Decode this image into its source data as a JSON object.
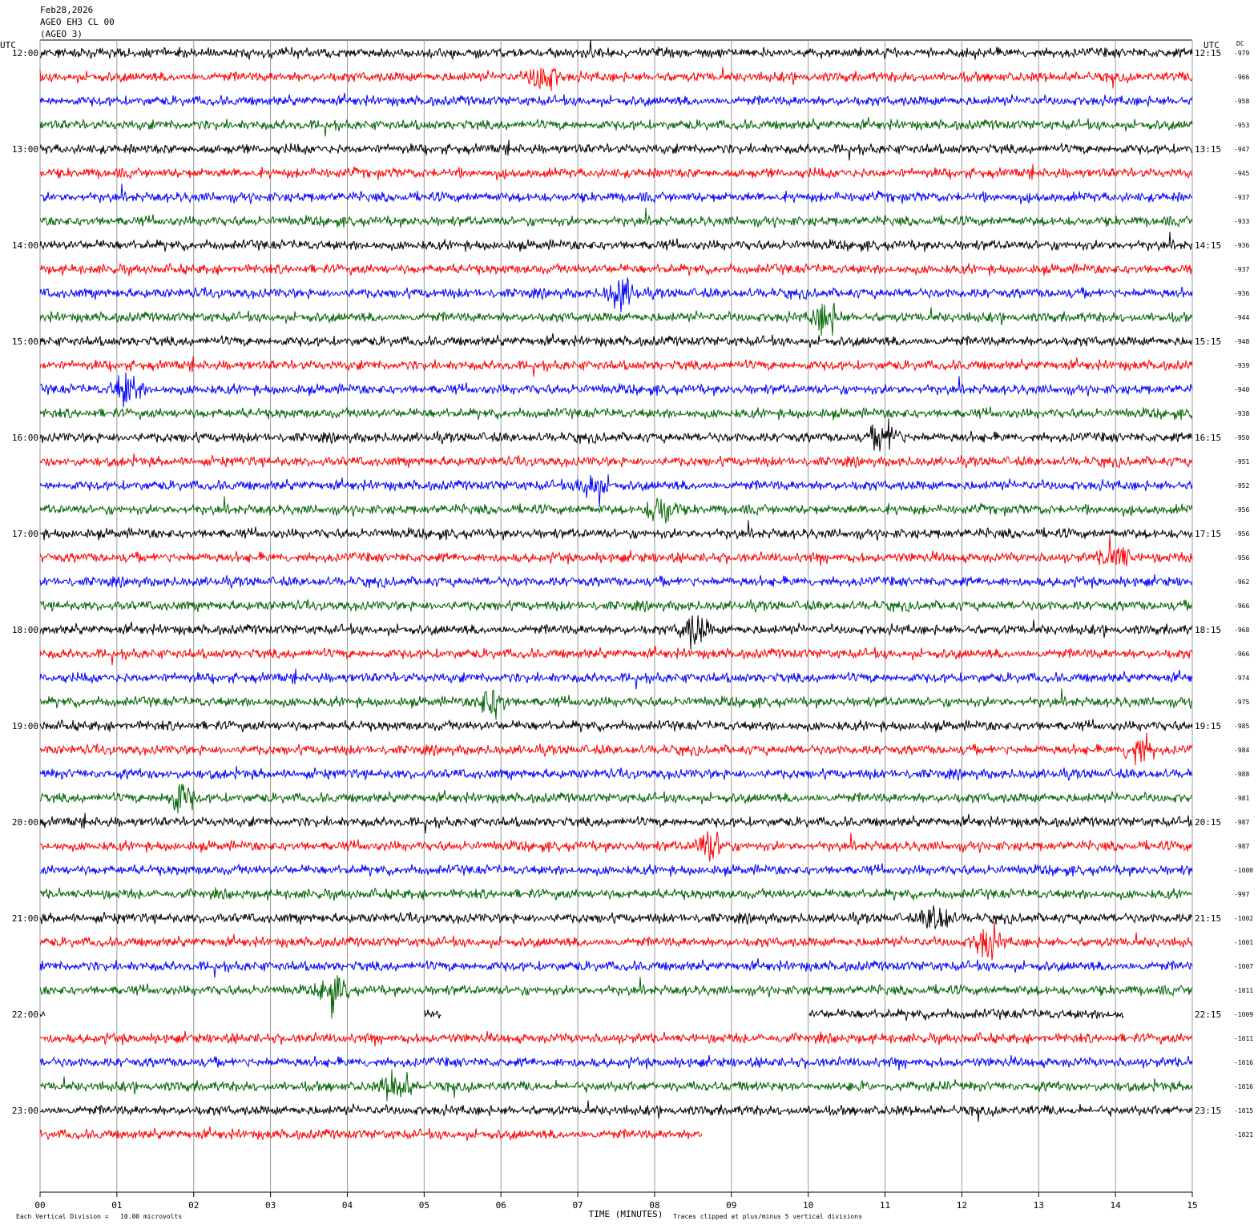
{
  "header": {
    "date": "Feb28,2026",
    "station": "AGEO EH3 CL 00",
    "network": "(AGEO 3)"
  },
  "left_axis": {
    "title": "UTC",
    "labels": [
      "12:00",
      "13:00",
      "14:00",
      "15:00",
      "16:00",
      "17:00",
      "18:00",
      "19:00",
      "20:00",
      "21:00",
      "22:00",
      "23:00"
    ]
  },
  "right_axis": {
    "title": "UTC",
    "labels": [
      "12:15",
      "13:15",
      "14:15",
      "15:15",
      "16:15",
      "17:15",
      "18:15",
      "19:15",
      "20:15",
      "21:15",
      "22:15",
      "23:15"
    ],
    "dc_title": "DC",
    "dc_values": [
      -979,
      -966,
      -958,
      -953,
      -947,
      -945,
      -937,
      -933,
      -936,
      -937,
      -936,
      -944,
      -948,
      -939,
      -940,
      -938,
      -950,
      -951,
      -952,
      -956,
      -956,
      -956,
      -962,
      -966,
      -968,
      -966,
      -974,
      -975,
      -985,
      -984,
      -988,
      -981,
      -987,
      -987,
      -1000,
      -997,
      -1002,
      -1001,
      -1007,
      -1011,
      -1009,
      -1011,
      -1016,
      -1016,
      -1015,
      -1021
    ]
  },
  "x_axis": {
    "title": "TIME (MINUTES)",
    "ticks": [
      "00",
      "01",
      "02",
      "03",
      "04",
      "05",
      "06",
      "07",
      "08",
      "09",
      "10",
      "11",
      "12",
      "13",
      "14",
      "15"
    ]
  },
  "footer": {
    "scale": "Each Vertical Division =   10.00 microvolts",
    "clip": "Traces clipped at plus/minus 5 vertical divisions"
  },
  "trace_colors": [
    "#000000",
    "#ff0000",
    "#0000ff",
    "#006400"
  ]
}
